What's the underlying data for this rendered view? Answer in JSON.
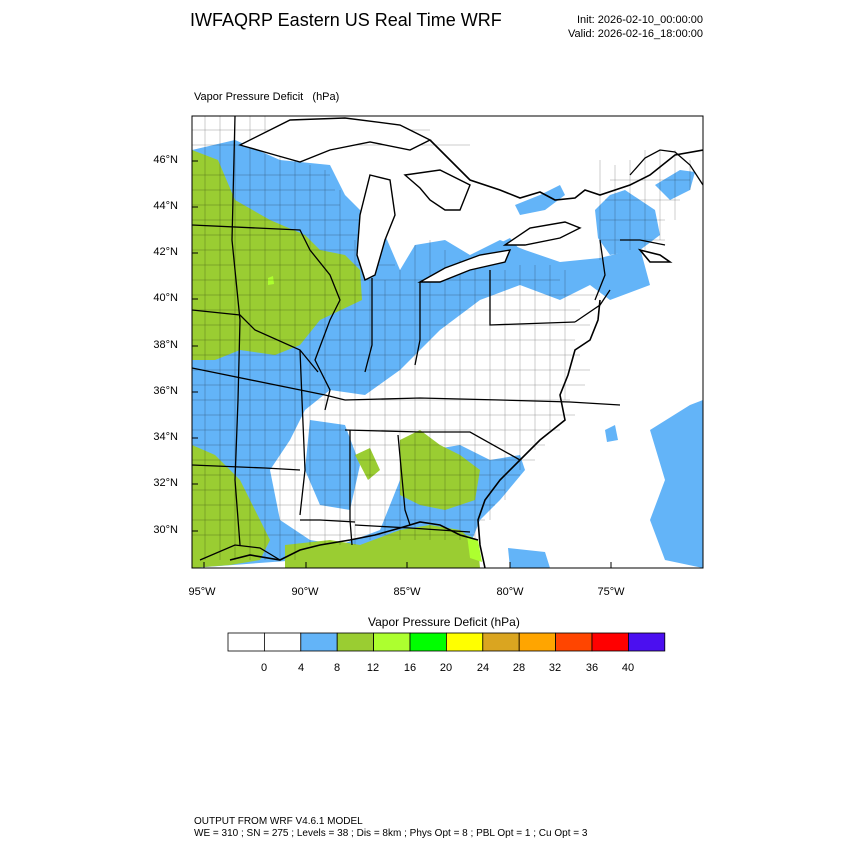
{
  "header": {
    "title": "IWFAQRP Eastern US Real Time WRF",
    "init": "Init: 2026-02-10_00:00:00",
    "valid": "Valid: 2026-02-16_18:00:00"
  },
  "field": {
    "name": "Vapor Pressure Deficit",
    "units": "(hPa)"
  },
  "map": {
    "lat_labels": [
      "46°N",
      "44°N",
      "42°N",
      "40°N",
      "38°N",
      "36°N",
      "34°N",
      "32°N",
      "30°N"
    ],
    "lon_labels": [
      "95°W",
      "90°W",
      "85°W",
      "80°W",
      "75°W"
    ]
  },
  "colorbar": {
    "title": "Vapor Pressure Deficit  (hPa)",
    "labels": [
      "0",
      "4",
      "8",
      "12",
      "16",
      "20",
      "24",
      "28",
      "32",
      "36",
      "40"
    ],
    "colors": [
      "#ffffff",
      "#ffffff",
      "#63b4f8",
      "#9acd32",
      "#adff2f",
      "#00ff00",
      "#ffff00",
      "#daa520",
      "#ffa500",
      "#ff4500",
      "#ff0000",
      "#4b0ff0"
    ]
  },
  "footer": {
    "line1": "OUTPUT FROM WRF V4.6.1 MODEL",
    "line2": "WE = 310 ; SN = 275 ; Levels = 38 ; Dis = 8km ; Phys Opt = 8 ; PBL Opt = 1 ; Cu Opt = 3"
  }
}
